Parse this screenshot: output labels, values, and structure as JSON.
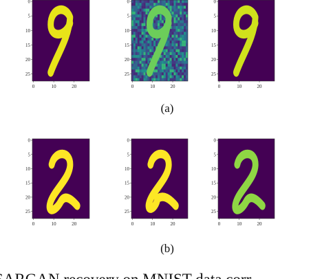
{
  "rows": [
    {
      "caption": "(a)"
    },
    {
      "caption": "(b)"
    }
  ],
  "yticks": [
    0,
    5,
    10,
    15,
    20,
    25
  ],
  "xticks": [
    0,
    10,
    20
  ],
  "body_text": "SARGAN recovery on MNIST data corr"
}
